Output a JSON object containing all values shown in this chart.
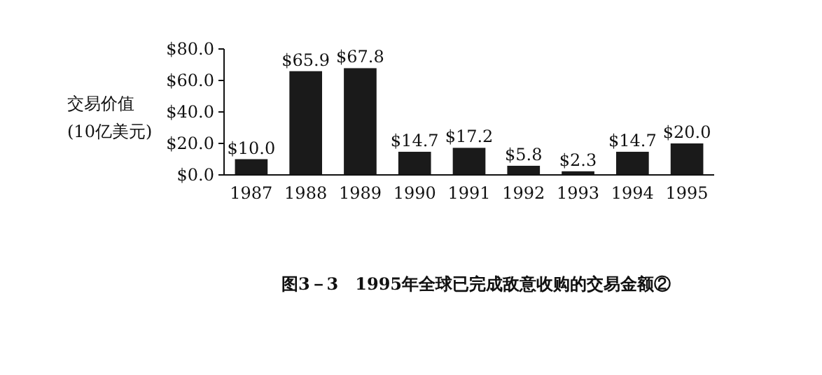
{
  "chart_data": {
    "type": "bar",
    "title": "图3－3　1995年全球已完成敌意收购的交易金额②",
    "ylabel": "交易价值 (10亿美元)",
    "categories": [
      "1987",
      "1988",
      "1989",
      "1990",
      "1991",
      "1992",
      "1993",
      "1994",
      "1995"
    ],
    "values": [
      10.0,
      65.9,
      67.8,
      14.7,
      17.2,
      5.8,
      2.3,
      14.7,
      20.0
    ],
    "value_labels": [
      "$10.0",
      "$65.9",
      "$67.8",
      "$14.7",
      "$17.2",
      "$5.8",
      "$2.3",
      "$14.7",
      "$20.0"
    ],
    "color": "#1a1a1a",
    "ylim": [
      0,
      80
    ],
    "yticks": [
      {
        "value": 0,
        "label": "$0.0"
      },
      {
        "value": 20,
        "label": "$20.0"
      },
      {
        "value": 40,
        "label": "$40.0"
      },
      {
        "value": 60,
        "label": "$60.0"
      },
      {
        "value": 80,
        "label": "$80.0"
      }
    ]
  }
}
